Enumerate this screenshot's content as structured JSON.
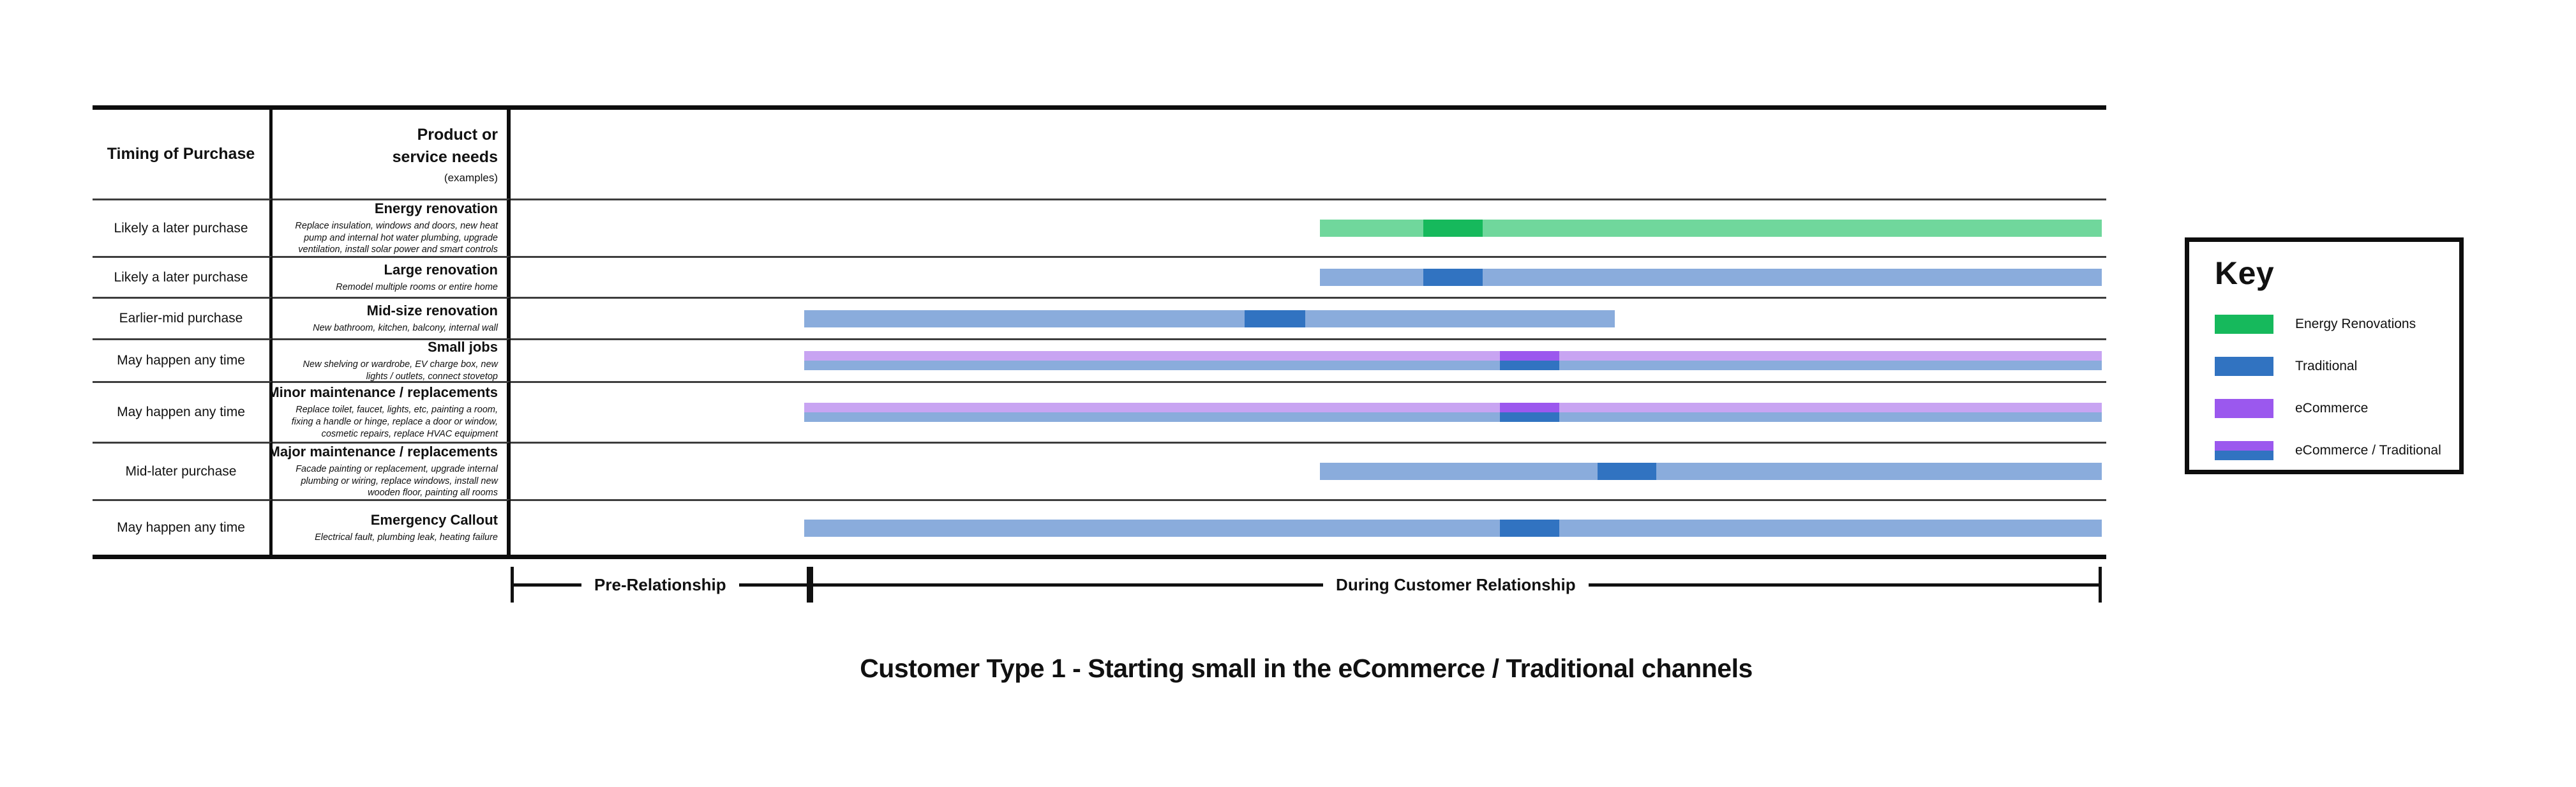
{
  "title": "Customer Type 1 - Starting small in the eCommerce / Traditional channels",
  "header": {
    "col1": "Timing of Purchase",
    "col2_lines": "Product or\nservice needs",
    "col2_sub": "(examples)"
  },
  "colors": {
    "energy_light": "#70d79c",
    "energy_dark": "#16b95c",
    "traditional_light": "#8aacdc",
    "traditional_dark": "#3173c1",
    "ecommerce_light": "#c8a4f2",
    "ecommerce_dark": "#9b58ee"
  },
  "axis": {
    "phases": [
      {
        "label": "Pre-Relationship",
        "start": 0,
        "end": 18.8
      },
      {
        "label": "During Customer Relationship",
        "start": 18.8,
        "end": 100
      }
    ]
  },
  "key": {
    "title": "Key",
    "items": [
      {
        "type": "energy",
        "label": "Energy Renovations"
      },
      {
        "type": "traditional",
        "label": "Traditional"
      },
      {
        "type": "ecommerce",
        "label": "eCommerce"
      },
      {
        "type": "combo",
        "label": "eCommerce / Traditional"
      }
    ]
  },
  "chart_data": {
    "type": "bar",
    "note": "Horizontal Gantt-style lanes; start/end/segment values are % of the timeline lane width",
    "rows": [
      {
        "timing": "Likely a later purchase",
        "product": "Energy renovation",
        "examples": "Replace insulation, windows and doors, new heat\npump and internal hot water plumbing, upgrade\nventilation, install solar power and smart controls",
        "bars": [
          {
            "type": "energy",
            "start": 50.7,
            "end": 99.7,
            "segment": [
              57.2,
              60.9
            ]
          }
        ]
      },
      {
        "timing": "Likely a later purchase",
        "product": "Large renovation",
        "examples": "Remodel multiple rooms or entire home",
        "bars": [
          {
            "type": "traditional",
            "start": 50.7,
            "end": 99.7,
            "segment": [
              57.2,
              60.9
            ]
          }
        ]
      },
      {
        "timing": "Earlier-mid purchase",
        "product": "Mid-size renovation",
        "examples": "New bathroom, kitchen, balcony, internal wall",
        "bars": [
          {
            "type": "traditional",
            "start": 18.4,
            "end": 69.2,
            "segment": [
              46.0,
              49.8
            ]
          }
        ]
      },
      {
        "timing": "May happen any time",
        "product": "Small jobs",
        "examples": "New shelving or wardrobe, EV charge box, new\nlights / outlets, connect stovetop",
        "bars": [
          {
            "type": "ecommerce",
            "start": 18.4,
            "end": 99.7,
            "segment": [
              62.0,
              65.7
            ]
          },
          {
            "type": "traditional",
            "start": 18.4,
            "end": 99.7,
            "segment": [
              62.0,
              65.7
            ]
          }
        ]
      },
      {
        "timing": "May happen any time",
        "product": "Minor maintenance / replacements",
        "examples": "Replace toilet, faucet, lights, etc, painting a room,\nfixing a handle or hinge, replace a door or window,\ncosmetic repairs, replace HVAC equipment",
        "bars": [
          {
            "type": "ecommerce",
            "start": 18.4,
            "end": 99.7,
            "segment": [
              62.0,
              65.7
            ]
          },
          {
            "type": "traditional",
            "start": 18.4,
            "end": 99.7,
            "segment": [
              62.0,
              65.7
            ]
          }
        ]
      },
      {
        "timing": "Mid-later purchase",
        "product": "Major maintenance / replacements",
        "examples": "Facade painting or replacement, upgrade internal\nplumbing or wiring, replace windows, install new\nwooden floor, painting all rooms",
        "bars": [
          {
            "type": "traditional",
            "start": 50.7,
            "end": 99.7,
            "segment": [
              68.1,
              71.8
            ]
          }
        ]
      },
      {
        "timing": "May happen any time",
        "product": "Emergency Callout",
        "examples": "Electrical fault, plumbing leak, heating failure",
        "bars": [
          {
            "type": "traditional",
            "start": 18.4,
            "end": 99.7,
            "segment": [
              62.0,
              65.7
            ]
          }
        ]
      }
    ]
  }
}
